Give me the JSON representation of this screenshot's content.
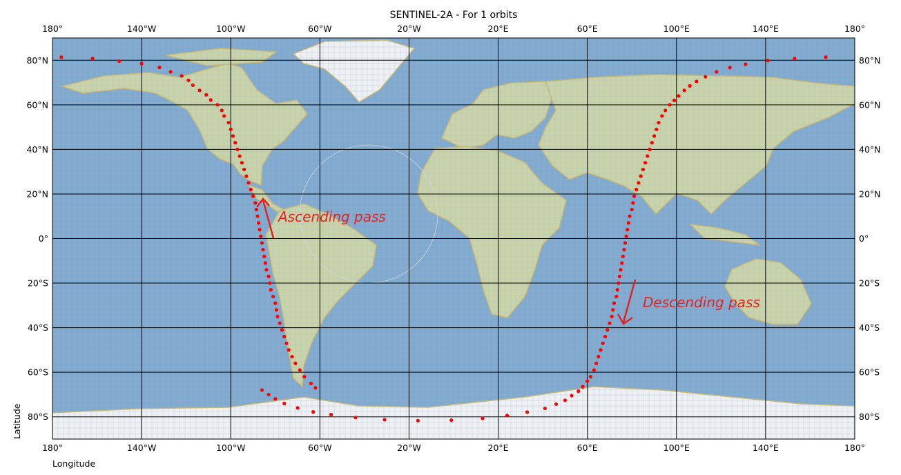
{
  "title": "SENTINEL-2A - For 1 orbits",
  "xlabel": "Longitude",
  "ylabel": "Latitude",
  "x_ticks": [
    "180°",
    "140°W",
    "100°W",
    "60°W",
    "20°W",
    "20°E",
    "60°E",
    "100°E",
    "140°E",
    "180°"
  ],
  "y_ticks": [
    "80°N",
    "60°N",
    "40°N",
    "20°N",
    "0°",
    "20°S",
    "40°S",
    "60°S",
    "80°S"
  ],
  "annotations": {
    "ascending": "Ascending pass",
    "descending": "Descending pass"
  },
  "colors": {
    "track": "#ff0000",
    "annotation": "#e02424",
    "ocean": "#7fa9cf",
    "land": "#c9d3a8",
    "ice": "#eef0f3",
    "coast": "#c8b673",
    "grid": "#000000"
  },
  "chart_data": {
    "type": "scatter",
    "projection": "plate-carree",
    "xlim": [
      -180,
      180
    ],
    "ylim": [
      -90,
      90
    ],
    "grid": true,
    "x_tick_values": [
      -180,
      -140,
      -100,
      -60,
      -20,
      20,
      60,
      100,
      140,
      180
    ],
    "y_tick_values": [
      80,
      60,
      40,
      20,
      0,
      -20,
      -40,
      -60,
      -80
    ],
    "ground_track": [
      [
        -176,
        81.4
      ],
      [
        -162,
        80.8
      ],
      [
        -150,
        79.6
      ],
      [
        -140,
        78.5
      ],
      [
        -132,
        76.8
      ],
      [
        -127,
        74.8
      ],
      [
        -122,
        73.0
      ],
      [
        -119,
        71.0
      ],
      [
        -117,
        68.8
      ],
      [
        -114,
        66.5
      ],
      [
        -111,
        64.5
      ],
      [
        -109,
        62.2
      ],
      [
        -106,
        60.0
      ],
      [
        -104,
        57.5
      ],
      [
        -103,
        55.0
      ],
      [
        -101,
        52.0
      ],
      [
        -100,
        49.0
      ],
      [
        -99,
        46.0
      ],
      [
        -98,
        43.0
      ],
      [
        -97,
        40.0
      ],
      [
        -96,
        37.0
      ],
      [
        -95,
        34.0
      ],
      [
        -94,
        31.0
      ],
      [
        -93,
        28.0
      ],
      [
        -92,
        25.0
      ],
      [
        -91,
        22.0
      ],
      [
        -90,
        19.0
      ],
      [
        -89,
        16.0
      ],
      [
        -88.5,
        13.0
      ],
      [
        -88,
        10.0
      ],
      [
        -87.5,
        7.0
      ],
      [
        -87,
        4.0
      ],
      [
        -86.5,
        1.0
      ],
      [
        -86,
        -2.0
      ],
      [
        -85.5,
        -5.0
      ],
      [
        -85,
        -8.0
      ],
      [
        -84.5,
        -11.0
      ],
      [
        -84,
        -14.0
      ],
      [
        -83,
        -17.0
      ],
      [
        -82.5,
        -20.0
      ],
      [
        -82,
        -23.0
      ],
      [
        -81,
        -26.0
      ],
      [
        -80,
        -29.0
      ],
      [
        -79.5,
        -32.0
      ],
      [
        -79,
        -35.0
      ],
      [
        -78,
        -38.0
      ],
      [
        -77,
        -41.0
      ],
      [
        -76,
        -44.0
      ],
      [
        -75,
        -47.0
      ],
      [
        -74,
        -50.0
      ],
      [
        -72.5,
        -53.0
      ],
      [
        -71,
        -56.0
      ],
      [
        -69,
        -59.0
      ],
      [
        -67,
        -62.0
      ],
      [
        -64,
        -65.0
      ],
      [
        -62,
        -67.0
      ],
      [
        -86,
        -68.0
      ],
      [
        -83,
        -70.0
      ],
      [
        -80,
        -72.0
      ],
      [
        -76,
        -74.0
      ],
      [
        -70,
        -76.0
      ],
      [
        -63,
        -77.8
      ],
      [
        -55,
        -79.0
      ],
      [
        -44,
        -80.3
      ],
      [
        -31,
        -81.3
      ],
      [
        -16,
        -81.7
      ],
      [
        -1,
        -81.5
      ],
      [
        13,
        -80.7
      ],
      [
        24,
        -79.4
      ],
      [
        33,
        -77.9
      ],
      [
        41,
        -76.2
      ],
      [
        46,
        -74.3
      ],
      [
        50,
        -72.6
      ],
      [
        53,
        -70.5
      ],
      [
        56,
        -68.5
      ],
      [
        58,
        -66.5
      ],
      [
        60,
        -64.0
      ],
      [
        61.5,
        -62.0
      ],
      [
        63,
        -59.0
      ],
      [
        64,
        -56.0
      ],
      [
        65,
        -53.0
      ],
      [
        66,
        -50.0
      ],
      [
        67,
        -47.0
      ],
      [
        68,
        -44.0
      ],
      [
        69,
        -41.0
      ],
      [
        70,
        -38.0
      ],
      [
        71,
        -35.0
      ],
      [
        71.5,
        -32.0
      ],
      [
        72,
        -29.0
      ],
      [
        73,
        -26.0
      ],
      [
        73.5,
        -23.0
      ],
      [
        74,
        -20.0
      ],
      [
        74.5,
        -17.0
      ],
      [
        75,
        -14.0
      ],
      [
        75.5,
        -11.0
      ],
      [
        76,
        -8.0
      ],
      [
        76.5,
        -5.0
      ],
      [
        77,
        -2.0
      ],
      [
        77.5,
        1.0
      ],
      [
        78,
        4.0
      ],
      [
        78.5,
        7.0
      ],
      [
        79,
        10.0
      ],
      [
        80,
        13.0
      ],
      [
        80.5,
        16.0
      ],
      [
        81,
        19.0
      ],
      [
        82,
        22.0
      ],
      [
        83,
        25.0
      ],
      [
        84,
        28.0
      ],
      [
        85,
        31.0
      ],
      [
        86,
        34.0
      ],
      [
        87,
        37.0
      ],
      [
        88,
        40.0
      ],
      [
        89,
        43.0
      ],
      [
        90,
        46.0
      ],
      [
        91,
        49.0
      ],
      [
        92,
        52.0
      ],
      [
        93.5,
        55.0
      ],
      [
        95,
        57.5
      ],
      [
        97,
        60.0
      ],
      [
        99,
        62.0
      ],
      [
        101,
        64.0
      ],
      [
        103.5,
        66.5
      ],
      [
        106,
        68.5
      ],
      [
        109,
        70.5
      ],
      [
        113,
        72.6
      ],
      [
        118,
        74.8
      ],
      [
        124,
        76.7
      ],
      [
        131,
        78.2
      ],
      [
        141,
        79.9
      ],
      [
        153,
        80.8
      ],
      [
        167,
        81.4
      ]
    ]
  }
}
